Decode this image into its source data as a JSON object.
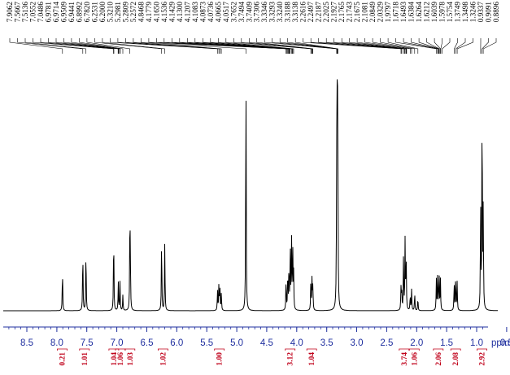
{
  "chart_data": {
    "type": "line",
    "xlabel": "ppm",
    "x_reversed": true,
    "xlim": [
      8.9,
      0.1
    ],
    "ticks": [
      "8.5",
      "8.0",
      "7.5",
      "7.0",
      "6.5",
      "6.0",
      "5.5",
      "5.0",
      "4.5",
      "4.0",
      "3.5",
      "3.0",
      "2.5",
      "2.0",
      "1.5",
      "1.0",
      "0.5"
    ],
    "tick_values": [
      8.5,
      8.0,
      7.5,
      7.0,
      6.5,
      6.0,
      5.5,
      5.0,
      4.5,
      4.0,
      3.5,
      3.0,
      2.5,
      2.0,
      1.5,
      1.0,
      0.5
    ],
    "colors": {
      "spectrum": "#000000",
      "axis": "#1f2f9f",
      "integral": "#c0001a"
    },
    "peak_labels": [
      "7.9062",
      "7.5667",
      "7.5136",
      "7.0552",
      "7.0486",
      "6.9781",
      "6.9714",
      "6.9509",
      "6.9441",
      "6.8992",
      "6.7820",
      "6.2531",
      "6.2000",
      "5.3210",
      "5.2981",
      "5.2809",
      "5.2572",
      "4.8468",
      "4.1779",
      "4.1650",
      "4.1536",
      "4.1429",
      "4.1300",
      "4.1207",
      "4.1083",
      "4.0873",
      "4.0736",
      "4.0665",
      "4.0517",
      "3.7652",
      "3.7494",
      "3.7409",
      "3.7306",
      "3.3346",
      "3.3293",
      "3.3240",
      "3.3188",
      "3.3138",
      "2.2616",
      "2.2497",
      "2.2187",
      "2.2025",
      "2.1927",
      "2.1765",
      "2.1743",
      "2.1675",
      "2.1081",
      "2.0849",
      "2.0329",
      "1.9797",
      "1.6718",
      "1.6493",
      "1.6384",
      "1.6264",
      "1.6212",
      "1.6039",
      "1.5978",
      "1.5754",
      "1.3749",
      "1.3498",
      "1.3246",
      "0.9337",
      "0.9091",
      "0.8896"
    ],
    "peak_values": [
      7.9062,
      7.5667,
      7.5136,
      7.0552,
      7.0486,
      6.9781,
      6.9714,
      6.9509,
      6.9441,
      6.8992,
      6.782,
      6.2531,
      6.2,
      5.321,
      5.2981,
      5.2809,
      5.2572,
      4.8468,
      4.1779,
      4.165,
      4.1536,
      4.1429,
      4.13,
      4.1207,
      4.1083,
      4.0873,
      4.0736,
      4.0665,
      4.0517,
      3.7652,
      3.7494,
      3.7409,
      3.7306,
      3.3346,
      3.3293,
      3.324,
      3.3188,
      3.3138,
      2.2616,
      2.2497,
      2.2187,
      2.2025,
      2.1927,
      2.1765,
      2.1743,
      2.1675,
      2.1081,
      2.0849,
      2.0329,
      1.9797,
      1.6718,
      1.6493,
      1.6384,
      1.6264,
      1.6212,
      1.6039,
      1.5978,
      1.5754,
      1.3749,
      1.3498,
      1.3246,
      0.9337,
      0.9091,
      0.8896
    ],
    "peaks": [
      {
        "ppm": 7.906,
        "h": 0.165
      },
      {
        "ppm": 7.567,
        "h": 0.24
      },
      {
        "ppm": 7.514,
        "h": 0.25
      },
      {
        "ppm": 7.052,
        "h": 0.315
      },
      {
        "ppm": 6.975,
        "h": 0.11
      },
      {
        "ppm": 6.947,
        "h": 0.11
      },
      {
        "ppm": 6.899,
        "h": 0.06
      },
      {
        "ppm": 6.782,
        "h": 0.305
      },
      {
        "ppm": 6.775,
        "h": 0.2
      },
      {
        "ppm": 6.253,
        "h": 0.29
      },
      {
        "ppm": 6.2,
        "h": 0.27
      },
      {
        "ppm": 5.321,
        "h": 0.08
      },
      {
        "ppm": 5.298,
        "h": 0.1
      },
      {
        "ppm": 5.281,
        "h": 0.095
      },
      {
        "ppm": 5.257,
        "h": 0.07
      },
      {
        "ppm": 4.847,
        "h": 0.97
      },
      {
        "ppm": 4.178,
        "h": 0.12
      },
      {
        "ppm": 4.15,
        "h": 0.15
      },
      {
        "ppm": 4.13,
        "h": 0.17
      },
      {
        "ppm": 4.108,
        "h": 0.26
      },
      {
        "ppm": 4.087,
        "h": 0.29
      },
      {
        "ppm": 4.067,
        "h": 0.25
      },
      {
        "ppm": 4.052,
        "h": 0.14
      },
      {
        "ppm": 3.765,
        "h": 0.11
      },
      {
        "ppm": 3.745,
        "h": 0.13
      },
      {
        "ppm": 3.731,
        "h": 0.1
      },
      {
        "ppm": 3.3346,
        "h": 0.32
      },
      {
        "ppm": 3.3293,
        "h": 0.42
      },
      {
        "ppm": 3.324,
        "h": 0.46
      },
      {
        "ppm": 3.3188,
        "h": 0.42
      },
      {
        "ppm": 3.3138,
        "h": 0.32
      },
      {
        "ppm": 2.262,
        "h": 0.085
      },
      {
        "ppm": 2.25,
        "h": 0.08
      },
      {
        "ppm": 2.219,
        "h": 0.22
      },
      {
        "ppm": 2.193,
        "h": 0.27
      },
      {
        "ppm": 2.175,
        "h": 0.2
      },
      {
        "ppm": 2.108,
        "h": 0.06
      },
      {
        "ppm": 2.085,
        "h": 0.08
      },
      {
        "ppm": 2.033,
        "h": 0.07
      },
      {
        "ppm": 1.98,
        "h": 0.05
      },
      {
        "ppm": 1.672,
        "h": 0.12
      },
      {
        "ppm": 1.649,
        "h": 0.15
      },
      {
        "ppm": 1.626,
        "h": 0.15
      },
      {
        "ppm": 1.604,
        "h": 0.12
      },
      {
        "ppm": 1.375,
        "h": 0.11
      },
      {
        "ppm": 1.35,
        "h": 0.14
      },
      {
        "ppm": 1.325,
        "h": 0.11
      },
      {
        "ppm": 0.934,
        "h": 0.42
      },
      {
        "ppm": 0.909,
        "h": 0.85
      },
      {
        "ppm": 0.89,
        "h": 0.4
      }
    ],
    "integrals": [
      {
        "label": "0.21",
        "ppm": 7.91
      },
      {
        "label": "1.01",
        "ppm": 7.54
      },
      {
        "label": "1.04",
        "ppm": 7.05
      },
      {
        "label": "1.06",
        "ppm": 6.94
      },
      {
        "label": "1.03",
        "ppm": 6.78
      },
      {
        "label": "1.02",
        "ppm": 6.23
      },
      {
        "label": "1.00",
        "ppm": 5.29
      },
      {
        "label": "3.12",
        "ppm": 4.11
      },
      {
        "label": "1.04",
        "ppm": 3.75
      },
      {
        "label": "3.74",
        "ppm": 2.21
      },
      {
        "label": "1.06",
        "ppm": 2.04
      },
      {
        "label": "2.06",
        "ppm": 1.64
      },
      {
        "label": "2.08",
        "ppm": 1.35
      },
      {
        "label": "2.92",
        "ppm": 0.91
      }
    ]
  }
}
